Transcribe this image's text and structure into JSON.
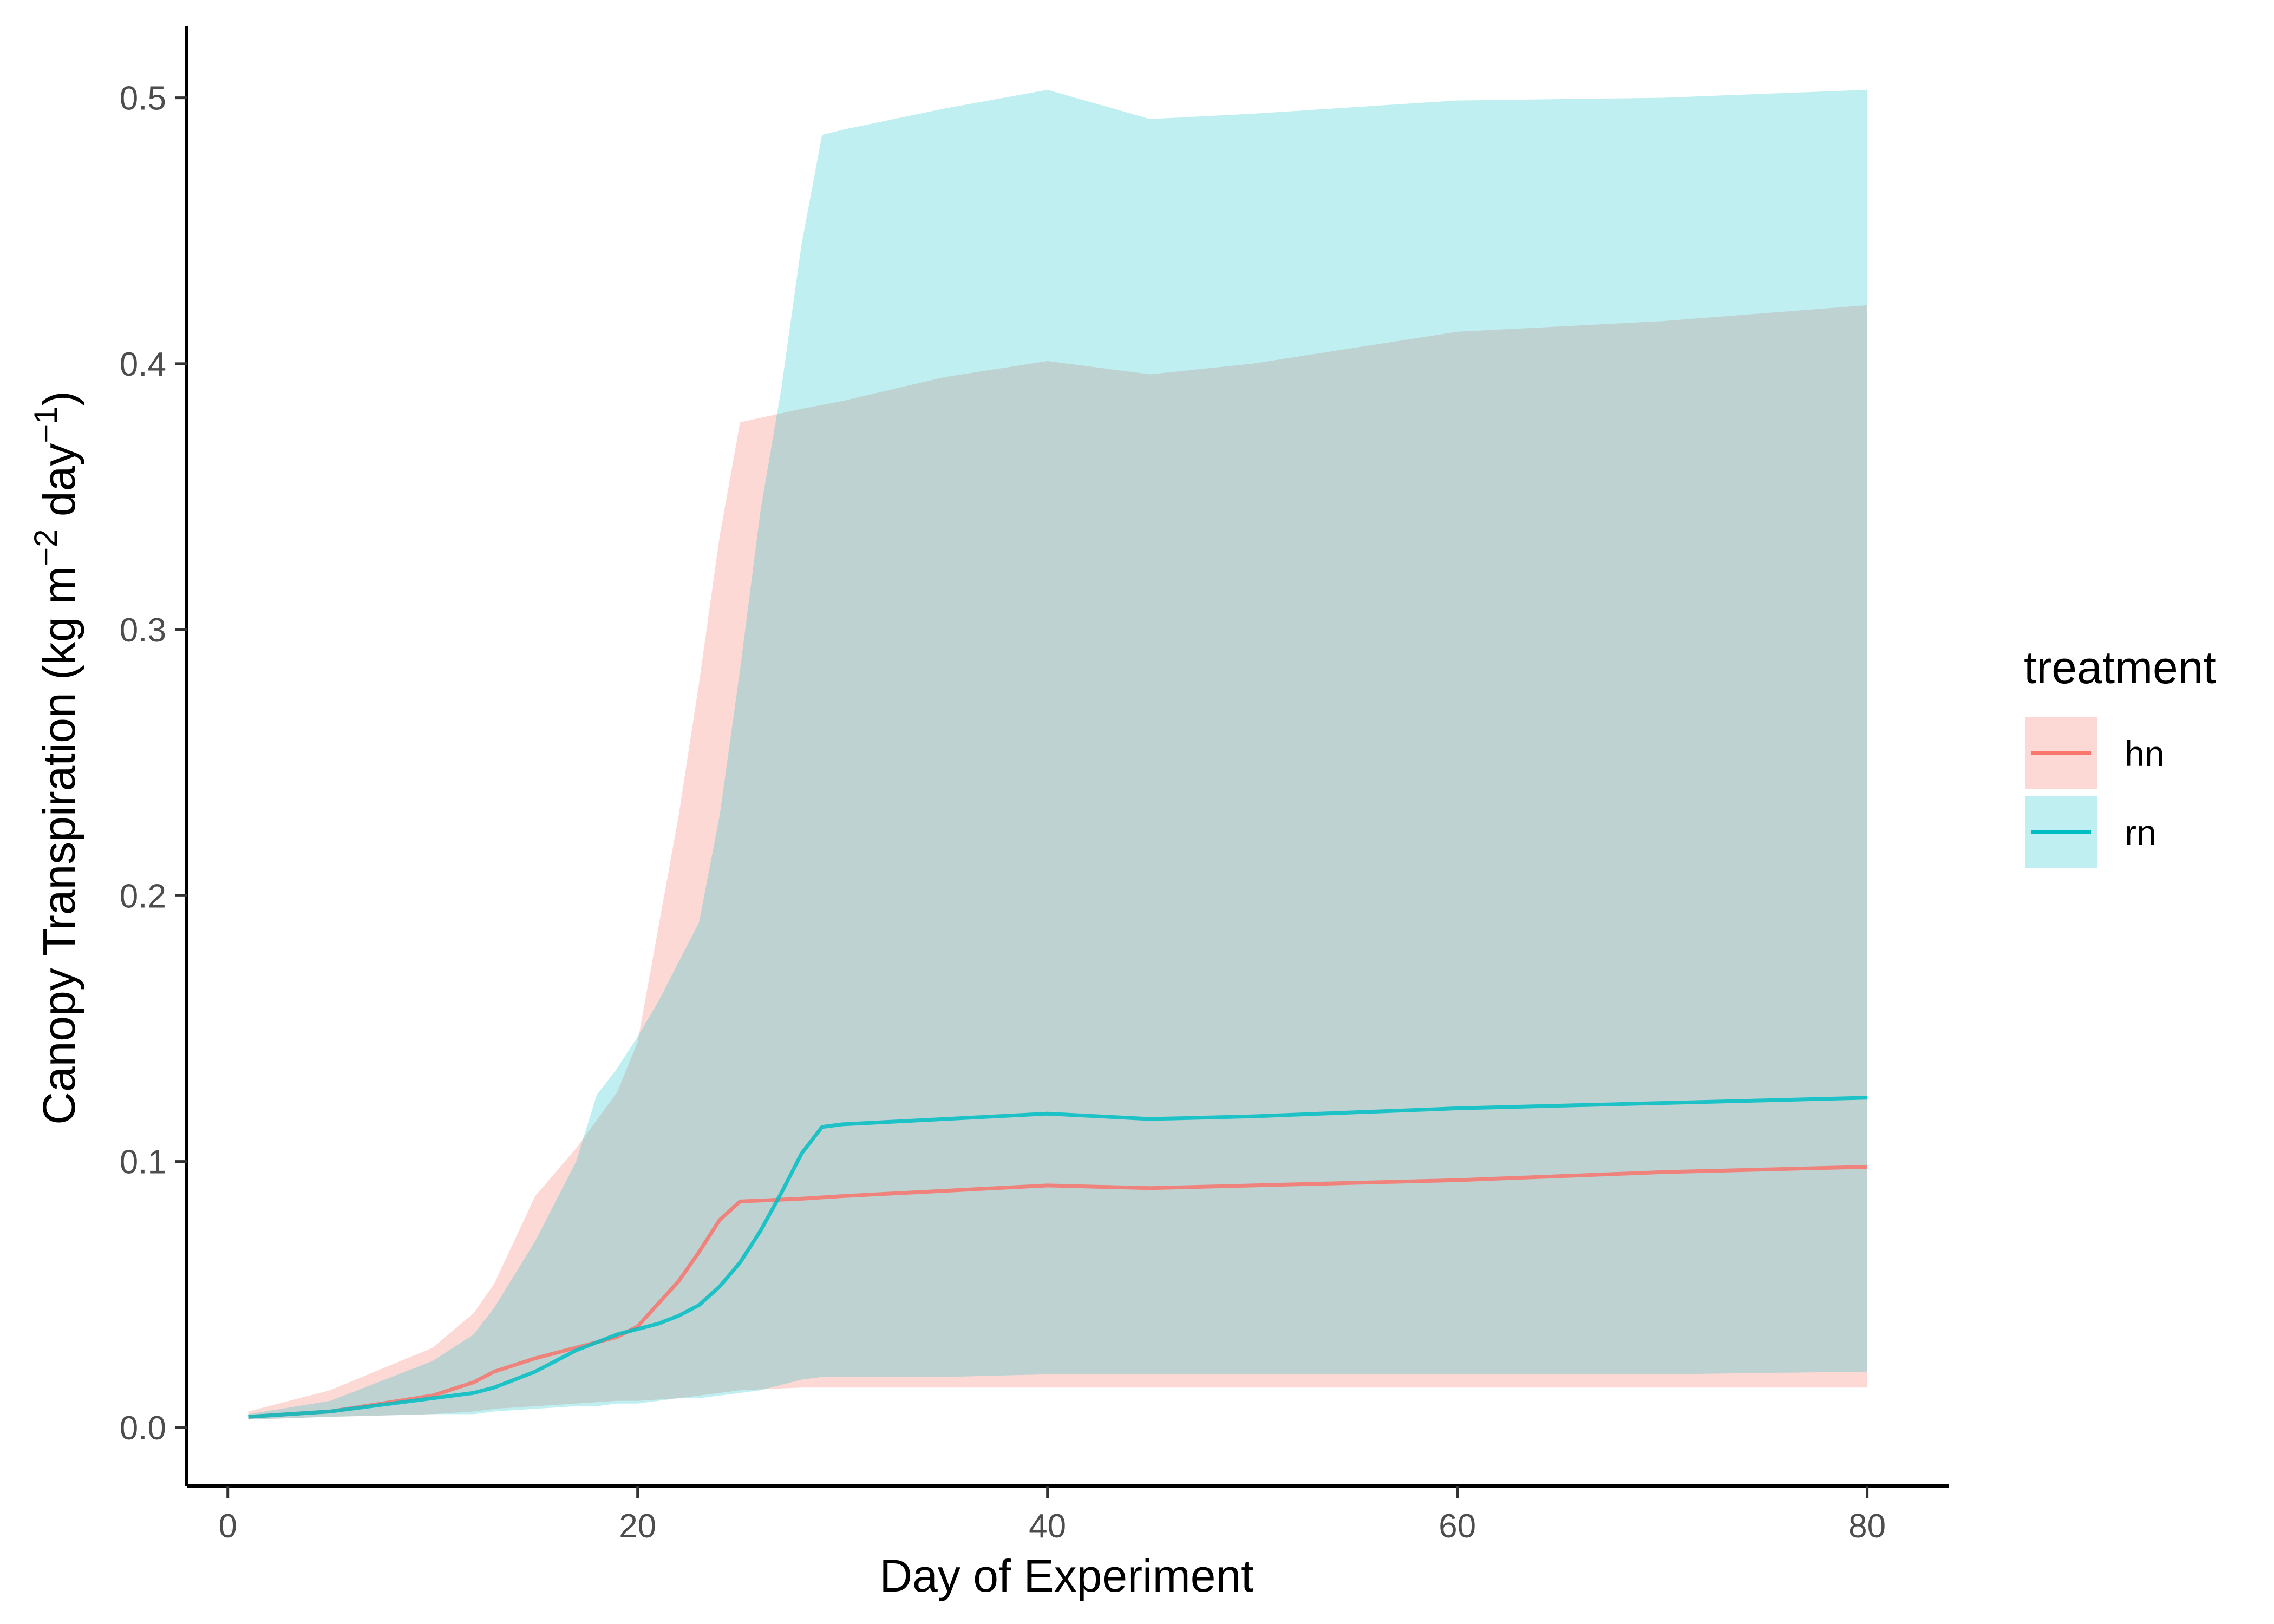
{
  "chart_data": {
    "type": "line",
    "title": "",
    "xlabel": "Day of Experiment",
    "ylabel": {
      "prefix": "Canopy Transpiration (kg m",
      "sup1": "−2",
      "middle": " day",
      "sup2": "−1",
      "suffix": ")"
    },
    "xlim": [
      -2,
      84
    ],
    "ylim": [
      -0.022,
      0.527
    ],
    "xticks": [
      0,
      20,
      40,
      60,
      80
    ],
    "yticks": [
      0.0,
      0.1,
      0.2,
      0.3,
      0.4,
      0.5
    ],
    "ytick_labels": [
      "0.0",
      "0.1",
      "0.2",
      "0.3",
      "0.4",
      "0.5"
    ],
    "grid": false,
    "legend": {
      "title": "treatment",
      "position": "right"
    },
    "series": [
      {
        "name": "hn",
        "color": "#F8766D",
        "ribbon_opacity": 0.28,
        "x": [
          1,
          5,
          10,
          12,
          13,
          15,
          17,
          19,
          20,
          22,
          23,
          24,
          25,
          28,
          30,
          35,
          40,
          45,
          50,
          60,
          70,
          80
        ],
        "mean": [
          0.004,
          0.006,
          0.012,
          0.017,
          0.021,
          0.026,
          0.03,
          0.034,
          0.038,
          0.055,
          0.066,
          0.078,
          0.085,
          0.086,
          0.087,
          0.089,
          0.091,
          0.09,
          0.091,
          0.093,
          0.096,
          0.098
        ],
        "lower": [
          0.003,
          0.004,
          0.005,
          0.006,
          0.007,
          0.008,
          0.009,
          0.01,
          0.01,
          0.011,
          0.012,
          0.013,
          0.014,
          0.015,
          0.015,
          0.015,
          0.015,
          0.015,
          0.015,
          0.015,
          0.015,
          0.015
        ],
        "upper": [
          0.006,
          0.014,
          0.03,
          0.043,
          0.054,
          0.087,
          0.105,
          0.126,
          0.145,
          0.23,
          0.28,
          0.335,
          0.378,
          0.383,
          0.386,
          0.395,
          0.401,
          0.396,
          0.4,
          0.412,
          0.416,
          0.422
        ]
      },
      {
        "name": "rn",
        "color": "#00BFC4",
        "ribbon_opacity": 0.25,
        "x": [
          1,
          5,
          10,
          12,
          13,
          15,
          17,
          18,
          19,
          20,
          21,
          22,
          23,
          24,
          25,
          26,
          27,
          28,
          29,
          30,
          35,
          40,
          45,
          50,
          60,
          70,
          80
        ],
        "mean": [
          0.004,
          0.006,
          0.011,
          0.013,
          0.015,
          0.021,
          0.029,
          0.032,
          0.035,
          0.037,
          0.039,
          0.042,
          0.046,
          0.053,
          0.062,
          0.074,
          0.088,
          0.103,
          0.113,
          0.114,
          0.116,
          0.118,
          0.116,
          0.117,
          0.12,
          0.122,
          0.124
        ],
        "lower": [
          0.003,
          0.004,
          0.005,
          0.005,
          0.006,
          0.007,
          0.008,
          0.008,
          0.009,
          0.009,
          0.01,
          0.011,
          0.011,
          0.012,
          0.013,
          0.014,
          0.016,
          0.018,
          0.019,
          0.019,
          0.019,
          0.02,
          0.02,
          0.02,
          0.02,
          0.02,
          0.021
        ],
        "upper": [
          0.005,
          0.01,
          0.025,
          0.035,
          0.045,
          0.07,
          0.1,
          0.125,
          0.135,
          0.147,
          0.16,
          0.175,
          0.19,
          0.23,
          0.285,
          0.345,
          0.39,
          0.445,
          0.486,
          0.488,
          0.496,
          0.503,
          0.492,
          0.494,
          0.499,
          0.5,
          0.503
        ]
      }
    ]
  }
}
